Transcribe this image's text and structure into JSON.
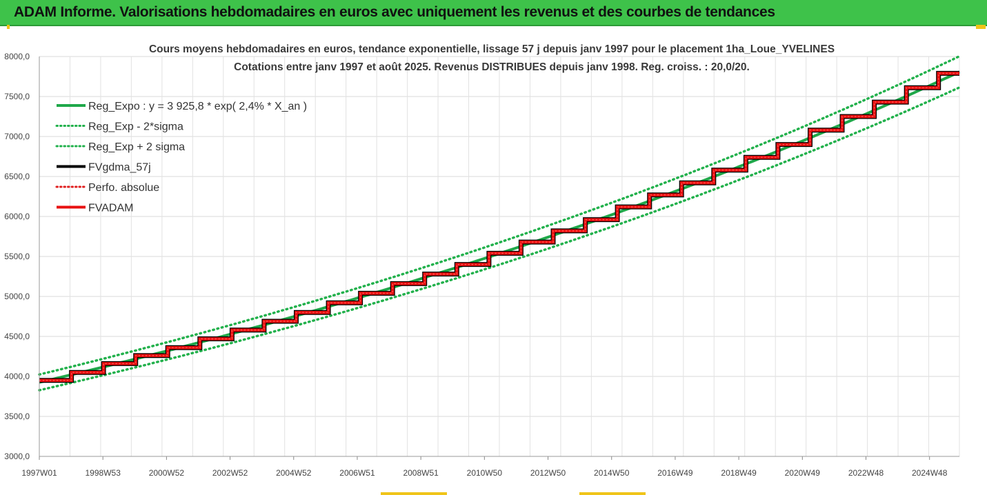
{
  "header": {
    "banner_title": "ADAM Informe. Valorisations hebdomadaires en euros avec uniquement les revenus et des courbes de tendances"
  },
  "colors": {
    "banner_bg": "#3ec24a",
    "trend_green": "#1fa84a",
    "band_green": "#22b14c",
    "smooth_black": "#000000",
    "perf_red": "#e02020",
    "fvadam_red": "#e81010"
  },
  "chart_data": {
    "type": "line",
    "title_line1": "Cours moyens hebdomadaires en euros, tendance exponentielle, lissage 57 j depuis janv 1997  pour le placement 1ha_Loue_YVELINES",
    "title_line2": "Cotations entre janv 1997 et août 2025. Revenus DISTRIBUES depuis janv 1998. Reg. croiss. : 20,0/20.",
    "y_ticks": [
      "3000,0",
      "3500,0",
      "4000,0",
      "4500,0",
      "5000,0",
      "5500,0",
      "6000,0",
      "6500,0",
      "7000,0",
      "7500,0",
      "8000,0"
    ],
    "ylim": [
      3000,
      8000
    ],
    "x_ticks": [
      "1997W01",
      "1998W53",
      "2000W52",
      "2002W52",
      "2004W52",
      "2006W51",
      "2008W51",
      "2010W50",
      "2012W50",
      "2014W50",
      "2016W49",
      "2018W49",
      "2020W49",
      "2022W48",
      "2024W48"
    ],
    "xlim_years": [
      1997.0,
      2025.65
    ],
    "grid": "vertical and horizontal",
    "legend_placement": "top-left",
    "legend": [
      {
        "label": "Reg_Expo : y = 3 925,8 * exp( 2,4% *  X_an )",
        "style": "solid",
        "color": "#1fa84a"
      },
      {
        "label": "Reg_Exp - 2*sigma",
        "style": "dotted",
        "color": "#22b14c"
      },
      {
        "label": "Reg_Exp + 2 sigma",
        "style": "dotted",
        "color": "#22b14c"
      },
      {
        "label": "FVgdma_57j",
        "style": "solid",
        "color": "#000000"
      },
      {
        "label": "Perfo. absolue",
        "style": "dotted",
        "color": "#e02020"
      },
      {
        "label": "FVADAM",
        "style": "solid",
        "color": "#e81010"
      }
    ],
    "regression": {
      "a": 3925.8,
      "rate": 0.024
    },
    "band_ratio": 0.025,
    "series": [
      {
        "name": "FVADAM",
        "steps": [
          {
            "year_start": 1997.0,
            "year_end": 1998.0,
            "value": 3950
          },
          {
            "year_start": 1998.0,
            "year_end": 1999.0,
            "value": 4050
          },
          {
            "year_start": 1999.0,
            "year_end": 2000.0,
            "value": 4160
          },
          {
            "year_start": 2000.0,
            "year_end": 2001.0,
            "value": 4260
          },
          {
            "year_start": 2001.0,
            "year_end": 2002.0,
            "value": 4360
          },
          {
            "year_start": 2002.0,
            "year_end": 2003.0,
            "value": 4470
          },
          {
            "year_start": 2003.0,
            "year_end": 2004.0,
            "value": 4580
          },
          {
            "year_start": 2004.0,
            "year_end": 2005.0,
            "value": 4690
          },
          {
            "year_start": 2005.0,
            "year_end": 2006.0,
            "value": 4800
          },
          {
            "year_start": 2006.0,
            "year_end": 2007.0,
            "value": 4920
          },
          {
            "year_start": 2007.0,
            "year_end": 2008.0,
            "value": 5040
          },
          {
            "year_start": 2008.0,
            "year_end": 2009.0,
            "value": 5160
          },
          {
            "year_start": 2009.0,
            "year_end": 2010.0,
            "value": 5280
          },
          {
            "year_start": 2010.0,
            "year_end": 2011.0,
            "value": 5400
          },
          {
            "year_start": 2011.0,
            "year_end": 2012.0,
            "value": 5540
          },
          {
            "year_start": 2012.0,
            "year_end": 2013.0,
            "value": 5680
          },
          {
            "year_start": 2013.0,
            "year_end": 2014.0,
            "value": 5820
          },
          {
            "year_start": 2014.0,
            "year_end": 2015.0,
            "value": 5960
          },
          {
            "year_start": 2015.0,
            "year_end": 2016.0,
            "value": 6120
          },
          {
            "year_start": 2016.0,
            "year_end": 2017.0,
            "value": 6270
          },
          {
            "year_start": 2017.0,
            "year_end": 2018.0,
            "value": 6420
          },
          {
            "year_start": 2018.0,
            "year_end": 2019.0,
            "value": 6580
          },
          {
            "year_start": 2019.0,
            "year_end": 2020.0,
            "value": 6740
          },
          {
            "year_start": 2020.0,
            "year_end": 2021.0,
            "value": 6900
          },
          {
            "year_start": 2021.0,
            "year_end": 2022.0,
            "value": 7080
          },
          {
            "year_start": 2022.0,
            "year_end": 2023.0,
            "value": 7250
          },
          {
            "year_start": 2023.0,
            "year_end": 2024.0,
            "value": 7430
          },
          {
            "year_start": 2024.0,
            "year_end": 2025.0,
            "value": 7610
          },
          {
            "year_start": 2025.0,
            "year_end": 2025.65,
            "value": 7790
          }
        ]
      }
    ]
  }
}
